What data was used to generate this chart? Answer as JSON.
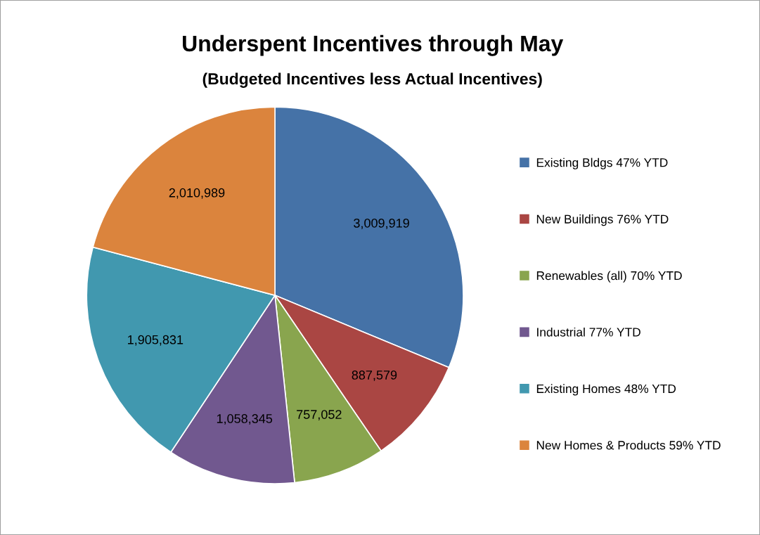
{
  "chart_data": {
    "type": "pie",
    "title": "Underspent Incentives through May",
    "subtitle": "(Budgeted Incentives less Actual Incentives)",
    "categories": [
      "Existing Bldgs 47% YTD",
      "New Buildings 76% YTD",
      "Renewables (all) 70% YTD",
      "Industrial 77% YTD",
      "Existing Homes 48% YTD",
      "New Homes & Products 59% YTD"
    ],
    "values": [
      3009919,
      887579,
      757052,
      1058345,
      1905831,
      2010989
    ],
    "colors": [
      "#4572a7",
      "#aa4643",
      "#89a54e",
      "#71588f",
      "#4198af",
      "#db843d"
    ],
    "value_labels": [
      "3,009,919",
      "887,579",
      "757,052",
      "1,058,345",
      "1,905,831",
      "2,010,989"
    ],
    "legend": "right"
  }
}
